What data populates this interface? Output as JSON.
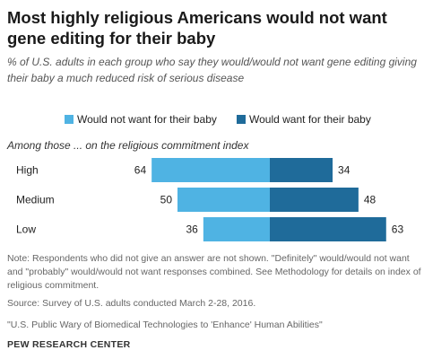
{
  "title": "Most highly religious Americans would not want gene editing for their baby",
  "subtitle": "% of U.S. adults in each group who say they would/would not want gene editing giving their baby a much reduced risk of serious disease",
  "section_label": "Among those ... on the religious commitment index",
  "colors": {
    "would_not": "#4fb3e3",
    "would": "#1f6b9a"
  },
  "chart_data": {
    "type": "bar",
    "stacked": "diverging",
    "categories": [
      "High",
      "Medium",
      "Low"
    ],
    "series": [
      {
        "name": "Would not want for their baby",
        "values": [
          64,
          50,
          36
        ]
      },
      {
        "name": "Would want for their baby",
        "values": [
          34,
          48,
          63
        ]
      }
    ],
    "legend_position": "top"
  },
  "note": "Note: Respondents who did not give an answer are not shown. \"Definitely\" would/would not want and \"probably\" would/would not want responses combined. See Methodology for details on index of religious commitment.",
  "source": "Source: Survey of U.S. adults conducted March 2-28, 2016.",
  "report": "\"U.S. Public Wary of Biomedical Technologies to 'Enhance' Human Abilities\"",
  "org": "PEW RESEARCH CENTER"
}
